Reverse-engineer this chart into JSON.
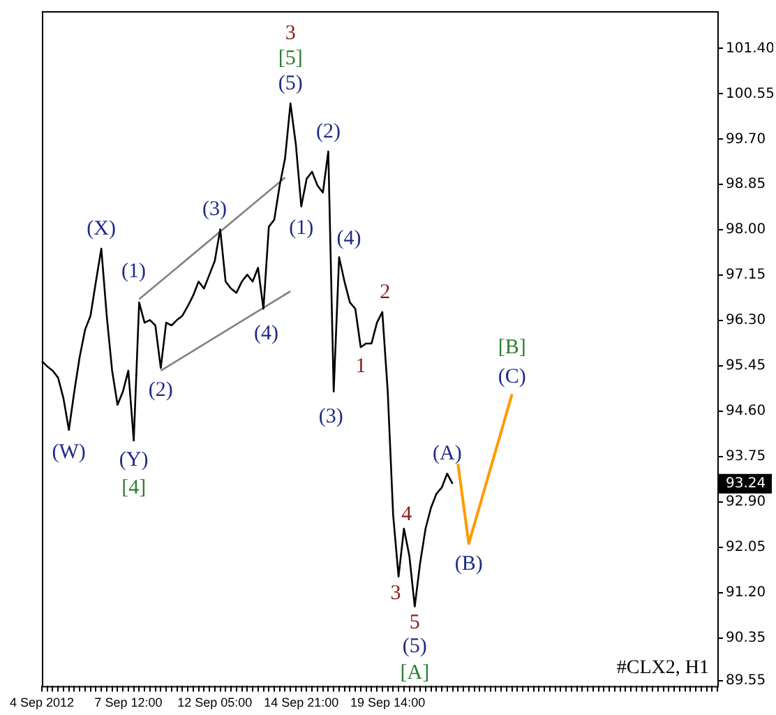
{
  "chart_data": {
    "type": "line",
    "categories": [
      "4 Sep 2012",
      null,
      null,
      null,
      null,
      null,
      null,
      null,
      null,
      null,
      null,
      null,
      null,
      null,
      null,
      null,
      "7 Sep 12:00",
      null,
      null,
      null,
      null,
      null,
      null,
      null,
      null,
      null,
      null,
      null,
      null,
      null,
      null,
      null,
      "12 Sep 05:00",
      null,
      null,
      null,
      null,
      null,
      null,
      null,
      null,
      null,
      null,
      null,
      null,
      null,
      null,
      null,
      "14 Sep 21:00",
      null,
      null,
      null,
      null,
      null,
      null,
      null,
      null,
      null,
      null,
      null,
      null,
      null,
      null,
      null,
      "19 Sep 14:00",
      null,
      null,
      null,
      null,
      null,
      null,
      null,
      null,
      null,
      null,
      null,
      null,
      null,
      null,
      null,
      null,
      null,
      null,
      null,
      null,
      null,
      null,
      null,
      null,
      null,
      null,
      null,
      null,
      null,
      null,
      null,
      null,
      null,
      null,
      null,
      null,
      null,
      null,
      null,
      null,
      null,
      null,
      null,
      null,
      null,
      null,
      null,
      null,
      null,
      null,
      null,
      null,
      null,
      null,
      null,
      null,
      null,
      null,
      null,
      null,
      null
    ],
    "series": [
      {
        "color": "#000000",
        "values": [
          95.54,
          95.44,
          95.36,
          95.23,
          94.84,
          94.25,
          94.97,
          95.62,
          96.13,
          96.39,
          97.03,
          97.65,
          96.39,
          95.36,
          94.72,
          94.97,
          95.36,
          94.05,
          96.64,
          96.26,
          96.31,
          96.21,
          95.41,
          96.26,
          96.21,
          96.31,
          96.39,
          96.57,
          96.77,
          97.03,
          96.9,
          97.16,
          97.42,
          98.01,
          97.03,
          96.9,
          96.82,
          97.03,
          97.16,
          97.03,
          97.29,
          96.52,
          98.06,
          98.19,
          98.83,
          99.34,
          100.37,
          99.6,
          98.44,
          98.96,
          99.09,
          98.83,
          98.7,
          99.47,
          94.97,
          97.49,
          97.03,
          96.64,
          96.52,
          95.8,
          95.87,
          95.87,
          96.26,
          96.46,
          94.97,
          92.66,
          91.5,
          92.4,
          91.89,
          90.94,
          91.76,
          92.4,
          92.79,
          93.05,
          93.17,
          93.43,
          93.24,
          null,
          null,
          null,
          null,
          null,
          null,
          null,
          null,
          null,
          null,
          null,
          null,
          null,
          null,
          null,
          null,
          null,
          null,
          null,
          null,
          null,
          null,
          null,
          null,
          null,
          null,
          null,
          null,
          null,
          null,
          null,
          null,
          null,
          null,
          null,
          null,
          null,
          null,
          null,
          null,
          null,
          null,
          null,
          null,
          null,
          null,
          null,
          null,
          null
        ]
      },
      {
        "color": "#808080",
        "values": [
          null,
          null,
          null,
          null,
          null,
          null,
          null,
          null,
          null,
          null,
          null,
          null,
          null,
          null,
          null,
          null,
          null,
          null,
          96.7,
          null,
          null,
          null,
          null,
          null,
          null,
          null,
          null,
          null,
          null,
          null,
          null,
          null,
          null,
          null,
          null,
          null,
          null,
          null,
          null,
          null,
          null,
          null,
          null,
          null,
          null,
          98.98,
          null,
          null,
          null,
          null,
          null,
          null,
          null,
          null,
          null,
          null,
          null,
          null,
          null,
          null,
          null,
          null,
          null,
          null,
          null,
          null,
          null,
          null,
          null,
          null,
          null,
          null,
          null,
          null,
          null,
          null,
          null,
          null,
          null,
          null,
          null,
          null,
          null,
          null,
          null,
          null,
          null,
          null,
          null,
          null,
          null,
          null,
          null,
          null,
          null,
          null,
          null,
          null,
          null,
          null,
          null,
          null,
          null,
          null,
          null,
          null,
          null,
          null,
          null,
          null,
          null,
          null,
          null,
          null,
          null,
          null,
          null,
          null,
          null,
          null,
          null,
          null,
          null,
          null,
          null,
          null
        ]
      },
      {
        "color": "#808080",
        "values": [
          null,
          null,
          null,
          null,
          null,
          null,
          null,
          null,
          null,
          null,
          null,
          null,
          null,
          null,
          null,
          null,
          null,
          null,
          null,
          null,
          null,
          null,
          95.36,
          null,
          null,
          null,
          null,
          null,
          null,
          null,
          null,
          null,
          null,
          null,
          null,
          null,
          null,
          null,
          null,
          null,
          null,
          null,
          null,
          null,
          null,
          null,
          96.85,
          null,
          null,
          null,
          null,
          null,
          null,
          null,
          null,
          null,
          null,
          null,
          null,
          null,
          null,
          null,
          null,
          null,
          null,
          null,
          null,
          null,
          null,
          null,
          null,
          null,
          null,
          null,
          null,
          null,
          null,
          null,
          null,
          null,
          null,
          null,
          null,
          null,
          null,
          null,
          null,
          null,
          null,
          null,
          null,
          null,
          null,
          null,
          null,
          null,
          null,
          null,
          null,
          null,
          null,
          null,
          null,
          null,
          null,
          null,
          null,
          null,
          null,
          null,
          null,
          null,
          null,
          null,
          null,
          null,
          null,
          null,
          null,
          null,
          null,
          null,
          null,
          null,
          null,
          null
        ]
      },
      {
        "color": "#ff9900",
        "values": [
          null,
          null,
          null,
          null,
          null,
          null,
          null,
          null,
          null,
          null,
          null,
          null,
          null,
          null,
          null,
          null,
          null,
          null,
          null,
          null,
          null,
          null,
          null,
          null,
          null,
          null,
          null,
          null,
          null,
          null,
          null,
          null,
          null,
          null,
          null,
          null,
          null,
          null,
          null,
          null,
          null,
          null,
          null,
          null,
          null,
          null,
          null,
          null,
          null,
          null,
          null,
          null,
          null,
          null,
          null,
          null,
          null,
          null,
          null,
          null,
          null,
          null,
          null,
          null,
          null,
          null,
          null,
          null,
          null,
          null,
          null,
          null,
          null,
          null,
          null,
          null,
          null,
          93.61,
          null,
          92.12,
          null,
          null,
          null,
          null,
          null,
          null,
          null,
          94.92,
          null,
          null,
          null,
          null,
          null,
          null,
          null,
          null,
          null,
          null,
          null,
          null,
          null,
          null,
          null,
          null,
          null,
          null,
          null,
          null,
          null,
          null,
          null,
          null,
          null,
          null,
          null,
          null,
          null,
          null,
          null,
          null,
          null,
          null,
          null,
          null,
          null,
          null
        ]
      }
    ],
    "ylim": [
      89.45,
      102.1
    ],
    "yticks": [
      89.55,
      90.35,
      {
        "value": 91.2,
        "label": "91.20"
      },
      92.05,
      {
        "value": 92.9,
        "label": "92.90"
      },
      93.75,
      {
        "value": 94.6,
        "label": "94.60"
      },
      95.45,
      {
        "value": 96.3,
        "label": "96.30"
      },
      97.15,
      {
        "value": 98,
        "label": "98.00"
      },
      98.85,
      {
        "value": 99.7,
        "label": "99.70"
      },
      100.55,
      {
        "value": 101.4,
        "label": "101.40"
      }
    ],
    "grid": false,
    "legend": false,
    "marker": "none",
    "line_style": "solid",
    "annotations": [
      {
        "text": "3",
        "y": 100.37
      },
      {
        "text": "[5]",
        "y": 100.37
      },
      {
        "text": "(5)",
        "y": 100.37
      },
      {
        "text": "(X)",
        "y": 97.65
      },
      {
        "text": "(1)",
        "y": 96.64
      },
      {
        "text": "(3)",
        "y": 98.01
      },
      {
        "text": "(2)",
        "y": 95.41
      },
      {
        "text": "(4)",
        "y": 96.52
      },
      {
        "text": "(1)",
        "y": 98.44
      },
      {
        "text": "(2)",
        "y": 99.47
      },
      "(4)",
      {
        "text": "(3)",
        "y": 94.97
      },
      {
        "text": "(W)",
        "y": 94.25
      },
      {
        "text": "(Y)",
        "y": 94.05
      },
      {
        "text": "[4]",
        "y": 94.05
      },
      {
        "text": "2",
        "y": 96.46
      },
      {
        "text": "1",
        "y": 95.8
      },
      {
        "text": "3",
        "y": 91.5
      },
      {
        "text": "4",
        "y": 92.4
      },
      {
        "text": "5",
        "y": 90.94
      },
      {
        "text": "(5)",
        "y": 90.94
      },
      {
        "text": "[A]",
        "y": 90.94
      },
      {
        "text": "(A)",
        "y": 93.43
      },
      {
        "text": "(B)",
        "y": 92.12
      },
      {
        "text": "(C)",
        "y": 94.92
      },
      {
        "text": "[B]",
        "y": 94.92
      },
      {
        "text": "93.24",
        "y": 93.24
      },
      "#CLX2, H1"
    ]
  }
}
